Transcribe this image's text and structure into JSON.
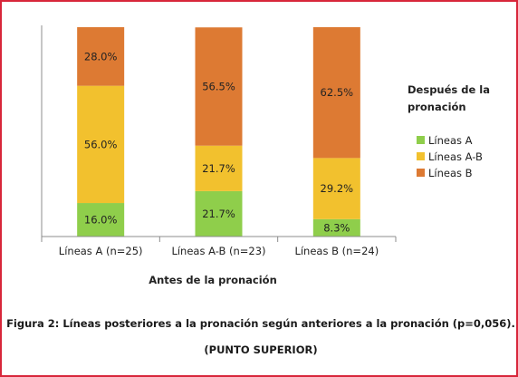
{
  "chart_data": {
    "type": "bar",
    "stacked": true,
    "categories": [
      "Líneas A (n=25)",
      "Líneas A-B (n=23)",
      "Líneas B (n=24)"
    ],
    "series": [
      {
        "name": "Líneas A",
        "values": [
          16.0,
          21.7,
          8.3
        ],
        "color": "#8fce4b"
      },
      {
        "name": "Líneas A-B",
        "values": [
          56.0,
          21.7,
          29.2
        ],
        "color": "#f2c12e"
      },
      {
        "name": "Líneas B",
        "values": [
          28.0,
          56.5,
          62.5
        ],
        "color": "#dd7a33"
      }
    ],
    "data_labels": [
      [
        "16.0%",
        "21.7%",
        "8.3%"
      ],
      [
        "56.0%",
        "21.7%",
        "29.2%"
      ],
      [
        "28.0%",
        "56.5%",
        "62.5%"
      ]
    ],
    "title": "",
    "xlabel": "Antes de la pronación",
    "ylabel": "",
    "ylim": [
      0,
      100
    ],
    "legend_title": [
      "Después de la",
      "pronación"
    ],
    "legend_position": "right",
    "grid": false
  },
  "caption": {
    "line1": "Figura 2: Líneas posteriores a la pronación según anteriores a la pronación (p=0,056).",
    "line2": "(PUNTO SUPERIOR)"
  },
  "colors": {
    "frame": "#d8263a",
    "axis": "#8c8c8c"
  }
}
